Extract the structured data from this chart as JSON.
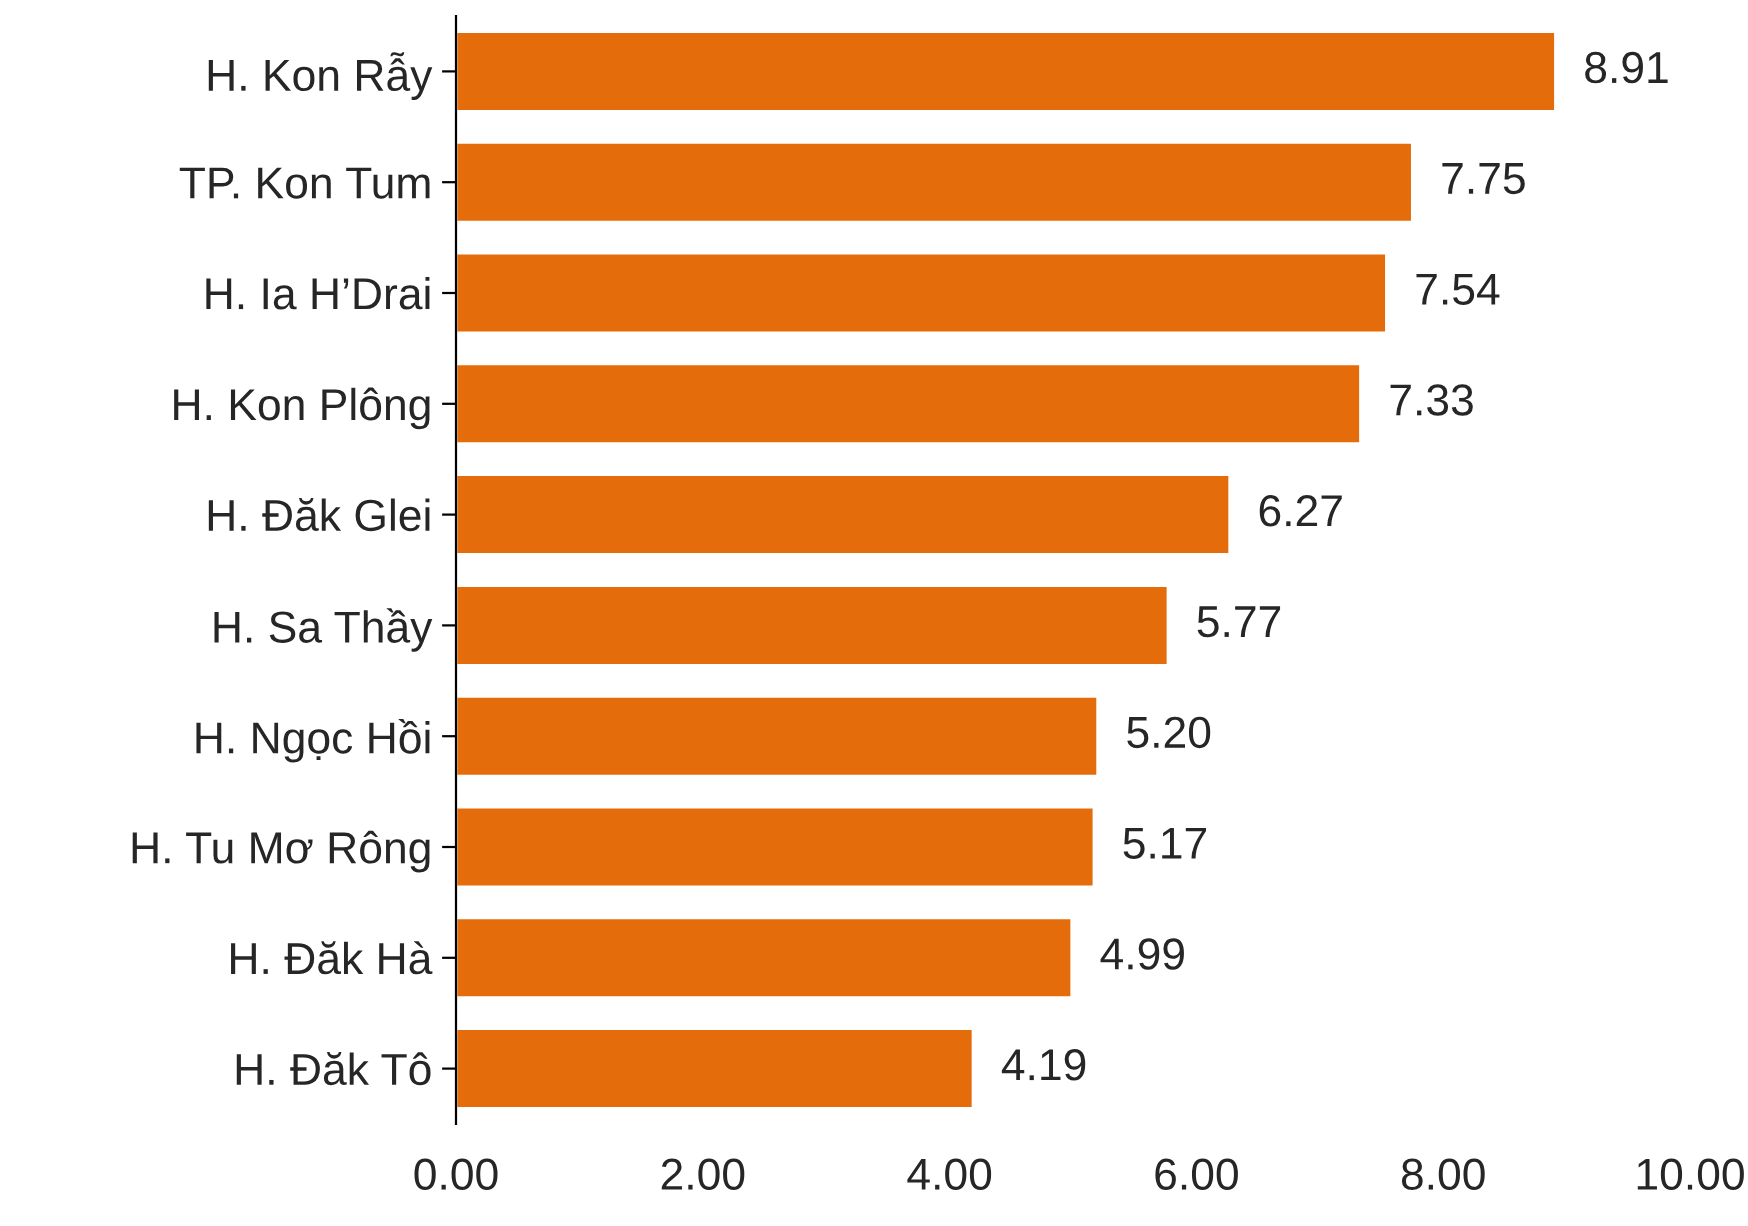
{
  "chart_data": {
    "type": "bar",
    "orientation": "horizontal",
    "categories": [
      "H. Kon Rẫy",
      "TP. Kon Tum",
      "H. Ia H’Drai",
      "H. Kon Plông",
      "H. Đăk Glei",
      "H. Sa Thầy",
      "H. Ngọc Hồi",
      "H. Tu Mơ Rông",
      "H. Đăk Hà",
      "H. Đăk Tô"
    ],
    "values": [
      8.91,
      7.75,
      7.54,
      7.33,
      6.27,
      5.77,
      5.2,
      5.17,
      4.99,
      4.19
    ],
    "value_labels": [
      "8.91",
      "7.75",
      "7.54",
      "7.33",
      "6.27",
      "5.77",
      "5.20",
      "5.17",
      "4.99",
      "4.19"
    ],
    "color": "#e46c0a",
    "xlim": [
      0,
      10
    ],
    "xticks": [
      {
        "value": 0,
        "label": "0.00"
      },
      {
        "value": 2,
        "label": "2.00"
      },
      {
        "value": 4,
        "label": "4.00"
      },
      {
        "value": 6,
        "label": "6.00"
      },
      {
        "value": 8,
        "label": "8.00"
      },
      {
        "value": 10,
        "label": "10.00"
      }
    ],
    "grid": false,
    "legend": false
  }
}
